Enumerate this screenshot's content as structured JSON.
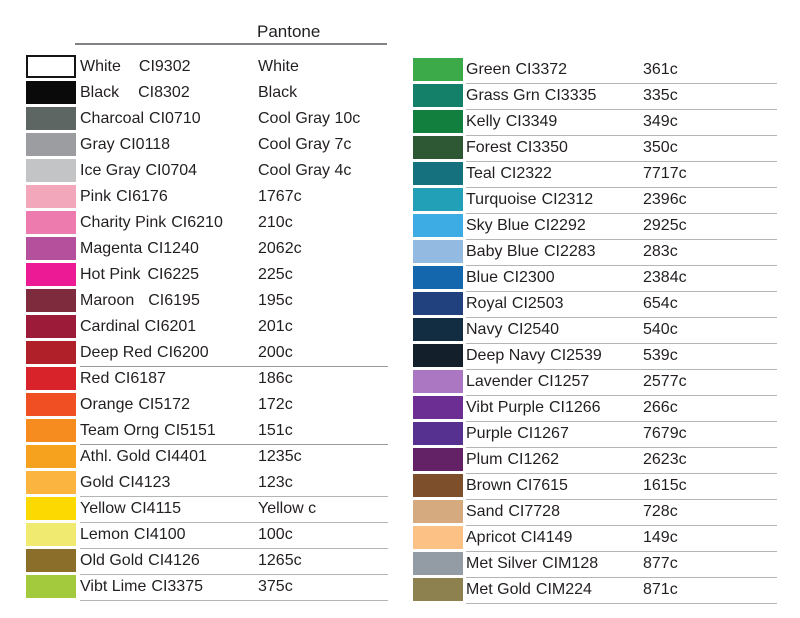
{
  "header": {
    "pantone_label": "Pantone"
  },
  "divider_colors": {
    "header": "#808285",
    "light": "#b2b5b7",
    "dark": "#97999c"
  },
  "columns": {
    "left": [
      {
        "name": "White",
        "code": "CI9302",
        "pantone": "White",
        "color": "#ffffff",
        "swatch_border": "#141414",
        "underline": "none"
      },
      {
        "name": "Black",
        "code": "CI8302",
        "pantone": "Black",
        "color": "#0a0a0a",
        "underline": "none"
      },
      {
        "name": "Charcoal",
        "code": "CI0710",
        "pantone": "Cool Gray 10c",
        "color": "#5e6663",
        "underline": "none"
      },
      {
        "name": "Gray",
        "code": "CI0118",
        "pantone": "Cool Gray 7c",
        "color": "#9b9da0",
        "underline": "none"
      },
      {
        "name": "Ice Gray",
        "code": "CI0704",
        "pantone": "Cool Gray 4c",
        "color": "#c2c4c6",
        "underline": "none"
      },
      {
        "name": "Pink",
        "code": "CI6176",
        "pantone": "1767c",
        "color": "#f3a7ba",
        "underline": "none"
      },
      {
        "name": "Charity Pink",
        "code": "CI6210",
        "pantone": "210c",
        "color": "#ee7bae",
        "underline": "none"
      },
      {
        "name": "Magenta",
        "code": "CI1240",
        "pantone": "2062c",
        "color": "#b5509c",
        "underline": "none"
      },
      {
        "name": "Hot Pink",
        "code": "CI6225",
        "pantone": "225c",
        "color": "#ed1a96",
        "underline": "none"
      },
      {
        "name": "Maroon",
        "code": "CI6195",
        "pantone": "195c",
        "color": "#7d2b3d",
        "underline": "none"
      },
      {
        "name": "Cardinal",
        "code": "CI6201",
        "pantone": "201c",
        "color": "#9c1b38",
        "underline": "none"
      },
      {
        "name": "Deep Red",
        "code": "CI6200",
        "pantone": "200c",
        "color": "#b02029",
        "underline": "dark"
      },
      {
        "name": "Red",
        "code": "CI6187",
        "pantone": "186c",
        "color": "#d8232a",
        "underline": "none"
      },
      {
        "name": "Orange",
        "code": "CI5172",
        "pantone": "172c",
        "color": "#f04e23",
        "underline": "none"
      },
      {
        "name": "Team Orng",
        "code": "CI5151",
        "pantone": "151c",
        "color": "#f68b1f",
        "underline": "dark"
      },
      {
        "name": "Athl. Gold",
        "code": "CI4401",
        "pantone": "1235c",
        "color": "#f6a21f",
        "underline": "none"
      },
      {
        "name": "Gold",
        "code": "CI4123",
        "pantone": "123c",
        "color": "#fbb440",
        "underline": "light"
      },
      {
        "name": "Yellow",
        "code": "CI4115",
        "pantone": "Yellow c",
        "color": "#fcd900",
        "underline": "light"
      },
      {
        "name": "Lemon",
        "code": "CI4100",
        "pantone": "100c",
        "color": "#f0eb70",
        "underline": "light"
      },
      {
        "name": "Old Gold",
        "code": "CI4126",
        "pantone": "1265c",
        "color": "#8a6e29",
        "underline": "light"
      },
      {
        "name": "Vibt Lime",
        "code": "CI3375",
        "pantone": "375c",
        "color": "#a3c93c",
        "underline": "light"
      }
    ],
    "right": [
      {
        "name": "Green",
        "code": "CI3372",
        "pantone": "361c",
        "color": "#3caa49",
        "underline": "light"
      },
      {
        "name": "Grass Grn",
        "code": "CI3335",
        "pantone": "335c",
        "color": "#15806a",
        "underline": "light"
      },
      {
        "name": "Kelly",
        "code": "CI3349",
        "pantone": "349c",
        "color": "#137f3e",
        "underline": "light"
      },
      {
        "name": "Forest",
        "code": "CI3350",
        "pantone": "350c",
        "color": "#2e5834",
        "underline": "light"
      },
      {
        "name": "Teal",
        "code": "CI2322",
        "pantone": "7717c",
        "color": "#15717e",
        "underline": "light"
      },
      {
        "name": "Turquoise",
        "code": "CI2312",
        "pantone": "2396c",
        "color": "#22a0b8",
        "underline": "light"
      },
      {
        "name": "Sky Blue",
        "code": "CI2292",
        "pantone": "2925c",
        "color": "#3dace4",
        "underline": "light"
      },
      {
        "name": "Baby Blue",
        "code": "CI2283",
        "pantone": "283c",
        "color": "#93bae1",
        "underline": "light"
      },
      {
        "name": "Blue",
        "code": "CI2300",
        "pantone": "2384c",
        "color": "#1467ac",
        "underline": "light"
      },
      {
        "name": "Royal",
        "code": "CI2503",
        "pantone": "654c",
        "color": "#20407e",
        "underline": "light"
      },
      {
        "name": "Navy",
        "code": "CI2540",
        "pantone": "540c",
        "color": "#122c42",
        "underline": "light"
      },
      {
        "name": "Deep Navy",
        "code": "CI2539",
        "pantone": "539c",
        "color": "#131f2b",
        "underline": "light"
      },
      {
        "name": "Lavender",
        "code": "CI1257",
        "pantone": "2577c",
        "color": "#ab77c3",
        "underline": "light"
      },
      {
        "name": "Vibt Purple",
        "code": "CI1266",
        "pantone": "266c",
        "color": "#6c2e93",
        "underline": "light"
      },
      {
        "name": "Purple",
        "code": "CI1267",
        "pantone": "7679c",
        "color": "#56318f",
        "underline": "light"
      },
      {
        "name": "Plum",
        "code": "CI1262",
        "pantone": "2623c",
        "color": "#632166",
        "underline": "light"
      },
      {
        "name": "Brown",
        "code": "CI7615",
        "pantone": "1615c",
        "color": "#7e4f2b",
        "underline": "light"
      },
      {
        "name": "Sand",
        "code": "CI7728",
        "pantone": "728c",
        "color": "#d4aa7e",
        "underline": "light"
      },
      {
        "name": "Apricot",
        "code": "CI4149",
        "pantone": "149c",
        "color": "#fcc184",
        "underline": "light"
      },
      {
        "name": "Met Silver",
        "code": "CIM128",
        "pantone": "877c",
        "color": "#939ba4",
        "underline": "light"
      },
      {
        "name": "Met Gold",
        "code": "CIM224",
        "pantone": "871c",
        "color": "#8e8150",
        "underline": "light"
      }
    ]
  }
}
